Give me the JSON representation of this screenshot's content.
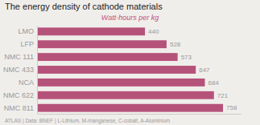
{
  "chart_data": {
    "type": "bar",
    "orientation": "horizontal",
    "title": "The energy density of cathode materials",
    "subtitle": "Watt-hours per kg",
    "footer": "ATLAS  |  Data: BNEF | L-Lithium, M-manganese, C-cobalt, A-Aluminium",
    "categories": [
      "LMO",
      "LFP",
      "NMC 111",
      "NMC 433",
      "NCA",
      "NMC 622",
      "NMC 811"
    ],
    "values": [
      440,
      528,
      573,
      647,
      684,
      721,
      758
    ],
    "color": "#b5527a",
    "xlim": [
      0,
      830
    ],
    "data_labels": true,
    "tick_labels": "y"
  }
}
